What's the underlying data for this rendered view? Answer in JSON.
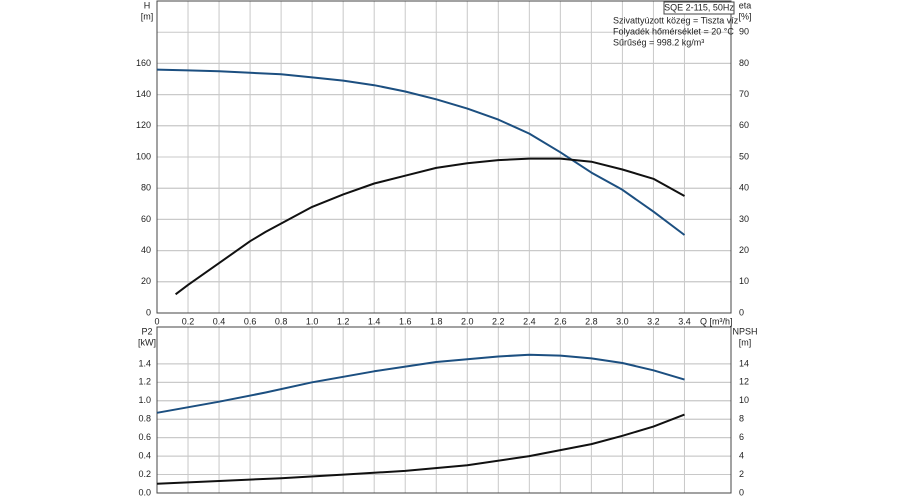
{
  "chart_data": [
    {
      "type": "line",
      "title": "SQE 2-115, 50Hz",
      "notes": [
        "Szivattyúzott közeg = Tiszta víz",
        "Folyadék hőmérséklet = 20 °C",
        "Sűrűség = 998.2 kg/m³"
      ],
      "ylabel": "H",
      "yunit": "[m]",
      "y2label": "eta",
      "y2unit": "[%]",
      "xlabel": "Q [m³/h]",
      "xlim": [
        0,
        3.7
      ],
      "xticks": [
        0,
        0.2,
        0.4,
        0.6,
        0.8,
        {
          "value": 1,
          "label": "1.0"
        },
        1.2,
        1.4,
        1.6,
        1.8,
        {
          "value": 2,
          "label": "2.0"
        },
        2.2,
        2.4,
        2.6,
        2.8,
        {
          "value": 3,
          "label": "3.0"
        },
        3.2,
        3.4
      ],
      "ylim": [
        0,
        200
      ],
      "yticks": [
        0,
        20,
        40,
        60,
        80,
        100,
        120,
        140,
        160
      ],
      "y2lim": [
        0,
        100
      ],
      "y2ticks": [
        0,
        10,
        20,
        30,
        40,
        50,
        60,
        70,
        80,
        90
      ],
      "grid": true,
      "series": [
        {
          "name": "H",
          "color": "#1c4f80",
          "x": [
            0,
            0.2,
            0.4,
            0.6,
            0.8,
            1.0,
            1.2,
            1.4,
            1.6,
            1.8,
            2.0,
            2.2,
            2.4,
            2.6,
            2.8,
            3.0,
            3.2,
            3.4
          ],
          "values": [
            156,
            155.5,
            155,
            154,
            153,
            151,
            149,
            146,
            142,
            137,
            131,
            124,
            115,
            103,
            90,
            79,
            65,
            50
          ]
        },
        {
          "name": "eta",
          "color": "#111111",
          "axis": "y2",
          "x": [
            0.12,
            0.2,
            0.4,
            0.6,
            0.7,
            1.0,
            1.2,
            1.4,
            1.6,
            1.8,
            2.0,
            2.2,
            2.4,
            2.6,
            2.8,
            3.0,
            3.2,
            3.4
          ],
          "values": [
            6,
            9,
            16,
            23,
            26,
            34,
            38,
            41.5,
            44,
            46.5,
            48,
            49,
            49.5,
            49.5,
            48.5,
            46,
            43,
            37.5
          ]
        }
      ]
    },
    {
      "type": "line",
      "ylabel": "P2",
      "yunit": "[kW]",
      "y2label": "NPSH",
      "y2unit": "[m]",
      "xlim": [
        0,
        3.7
      ],
      "ylim": [
        0,
        1.8
      ],
      "yticks": [
        {
          "value": 0,
          "label": "0.0"
        },
        0.2,
        0.4,
        0.6,
        0.8,
        {
          "value": 1,
          "label": "1.0"
        },
        1.2,
        1.4
      ],
      "y2lim": [
        0,
        18
      ],
      "y2ticks": [
        0,
        2,
        4,
        6,
        8,
        10,
        12,
        14
      ],
      "grid": true,
      "series": [
        {
          "name": "P2",
          "color": "#1c4f80",
          "x": [
            0,
            0.4,
            0.7,
            1.0,
            1.4,
            1.8,
            2.2,
            2.4,
            2.6,
            2.8,
            3.0,
            3.2,
            3.4
          ],
          "values": [
            0.87,
            0.99,
            1.09,
            1.2,
            1.32,
            1.42,
            1.48,
            1.5,
            1.49,
            1.46,
            1.41,
            1.33,
            1.23
          ]
        },
        {
          "name": "NPSH",
          "color": "#111111",
          "axis": "y2",
          "x": [
            0,
            0.4,
            0.8,
            1.2,
            1.6,
            2.0,
            2.4,
            2.8,
            3.0,
            3.2,
            3.4
          ],
          "values": [
            1.0,
            1.3,
            1.6,
            2.0,
            2.4,
            3.0,
            4.0,
            5.3,
            6.2,
            7.2,
            8.5
          ]
        }
      ]
    }
  ]
}
